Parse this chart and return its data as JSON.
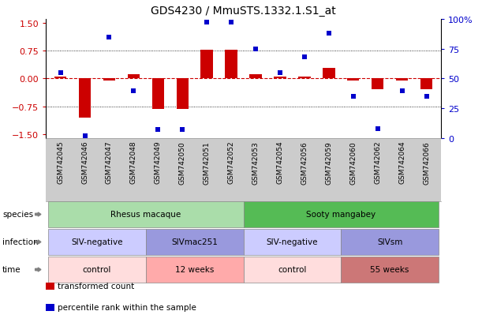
{
  "title": "GDS4230 / MmuSTS.1332.1.S1_at",
  "samples": [
    "GSM742045",
    "GSM742046",
    "GSM742047",
    "GSM742048",
    "GSM742049",
    "GSM742050",
    "GSM742051",
    "GSM742052",
    "GSM742053",
    "GSM742054",
    "GSM742056",
    "GSM742059",
    "GSM742060",
    "GSM742062",
    "GSM742064",
    "GSM742066"
  ],
  "bar_values": [
    0.05,
    -1.05,
    -0.05,
    0.12,
    -0.82,
    -0.82,
    0.78,
    0.78,
    0.12,
    0.05,
    0.05,
    0.28,
    -0.05,
    -0.28,
    -0.05,
    -0.28
  ],
  "dot_values": [
    55,
    2,
    85,
    40,
    7,
    7,
    97,
    97,
    75,
    55,
    68,
    88,
    35,
    8,
    40,
    35
  ],
  "ylim": [
    -1.6,
    1.6
  ],
  "y2lim": [
    0,
    100
  ],
  "yticks": [
    -1.5,
    -0.75,
    0,
    0.75,
    1.5
  ],
  "y2ticks": [
    0,
    25,
    50,
    75,
    100
  ],
  "bar_color": "#CC0000",
  "dot_color": "#0000CC",
  "species_labels": [
    {
      "text": "Rhesus macaque",
      "start": 0,
      "end": 8,
      "color": "#AADDAA"
    },
    {
      "text": "Sooty mangabey",
      "start": 8,
      "end": 16,
      "color": "#55BB55"
    }
  ],
  "infection_labels": [
    {
      "text": "SIV-negative",
      "start": 0,
      "end": 4,
      "color": "#CCCCFF"
    },
    {
      "text": "SIVmac251",
      "start": 4,
      "end": 8,
      "color": "#9999DD"
    },
    {
      "text": "SIV-negative",
      "start": 8,
      "end": 12,
      "color": "#CCCCFF"
    },
    {
      "text": "SIVsm",
      "start": 12,
      "end": 16,
      "color": "#9999DD"
    }
  ],
  "time_labels": [
    {
      "text": "control",
      "start": 0,
      "end": 4,
      "color": "#FFDDDD"
    },
    {
      "text": "12 weeks",
      "start": 4,
      "end": 8,
      "color": "#FFAAAA"
    },
    {
      "text": "control",
      "start": 8,
      "end": 12,
      "color": "#FFDDDD"
    },
    {
      "text": "55 weeks",
      "start": 12,
      "end": 16,
      "color": "#CC7777"
    }
  ],
  "row_labels": [
    "species",
    "infection",
    "time"
  ],
  "legend_items": [
    {
      "color": "#CC0000",
      "label": "transformed count"
    },
    {
      "color": "#0000CC",
      "label": "percentile rank within the sample"
    }
  ],
  "tick_bg_color": "#CCCCCC",
  "bg_color": "#FFFFFF"
}
